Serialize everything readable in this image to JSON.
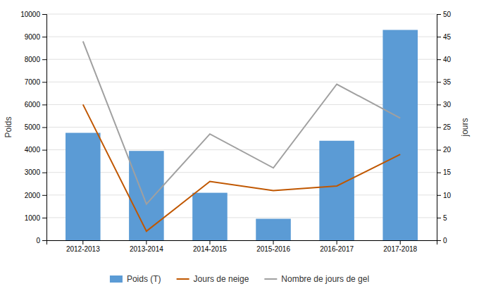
{
  "chart_data": {
    "type": "bar",
    "categories": [
      "2012-2013",
      "2013-2014",
      "2014-2015",
      "2015-2016",
      "2016-2017",
      "2017-2018"
    ],
    "series": [
      {
        "name": "Poids (T)",
        "type": "bar",
        "color": "#5B9BD5",
        "values": [
          4750,
          3950,
          2100,
          950,
          4400,
          9300
        ]
      },
      {
        "name": "Jours de neige",
        "type": "line",
        "axis": "y2",
        "color": "#C05700",
        "values": [
          30,
          2,
          13,
          11,
          12,
          19
        ]
      },
      {
        "name": "Nombre de jours de gel",
        "type": "line",
        "axis": "y2",
        "color": "#A0A0A0",
        "values": [
          44,
          8,
          23.5,
          16,
          34.5,
          27
        ]
      }
    ],
    "ylabel": "Poids",
    "y2label": "jours",
    "ylim": [
      0,
      10000
    ],
    "yticks": [
      0,
      1000,
      2000,
      3000,
      4000,
      5000,
      6000,
      7000,
      8000,
      9000,
      10000
    ],
    "y2lim": [
      0,
      50
    ],
    "y2ticks": [
      0,
      5,
      10,
      15,
      20,
      25,
      30,
      35,
      40,
      45,
      50
    ],
    "grid": true,
    "legend": "bottom"
  }
}
